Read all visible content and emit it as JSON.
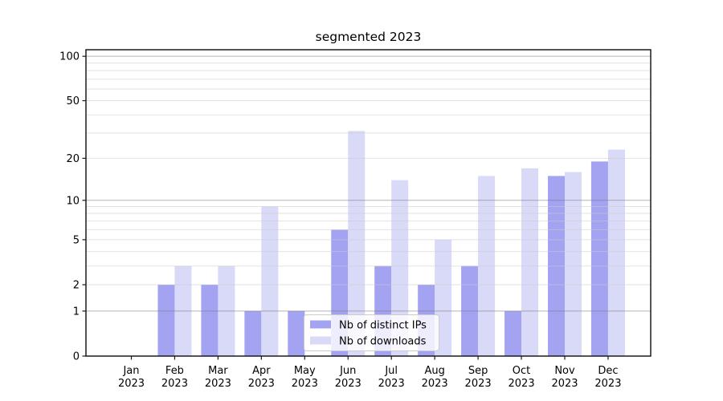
{
  "title": "segmented 2023",
  "chart_data": {
    "type": "bar",
    "title": "segmented 2023",
    "categories": [
      "Jan",
      "Feb",
      "Mar",
      "Apr",
      "May",
      "Jun",
      "Jul",
      "Aug",
      "Sep",
      "Oct",
      "Nov",
      "Dec"
    ],
    "year_label": "2023",
    "x_tick_labels": [
      "Jan 2023",
      "Feb 2023",
      "Mar 2023",
      "Apr 2023",
      "May 2023",
      "Jun 2023",
      "Jul 2023",
      "Aug 2023",
      "Sep 2023",
      "Oct 2023",
      "Nov 2023",
      "Dec 2023"
    ],
    "series": [
      {
        "name": "Nb of distinct IPs",
        "color": "#a3a3f2",
        "values": [
          0,
          2,
          2,
          1,
          1,
          6,
          3,
          2,
          3,
          1,
          15,
          19
        ]
      },
      {
        "name": "Nb of downloads",
        "color": "#d9d9f8",
        "values": [
          0,
          3,
          3,
          9,
          0,
          31,
          14,
          5,
          15,
          17,
          16,
          23
        ]
      }
    ],
    "xlabel": "",
    "ylabel": "",
    "yscale": "symlog-like (pixel position proportional to ln(1+value))",
    "yticks": [
      0,
      1,
      2,
      5,
      10,
      20,
      50,
      100
    ],
    "major_gridlines": [
      1,
      10,
      100
    ],
    "minor_gridlines": [
      2,
      3,
      4,
      5,
      6,
      7,
      8,
      9,
      20,
      30,
      40,
      50,
      60,
      70,
      80,
      90
    ],
    "ylim": [
      0,
      111
    ],
    "grid": true,
    "legend": {
      "position": "lower center (overlapping bars)",
      "items": [
        "Nb of distinct IPs",
        "Nb of downloads"
      ]
    }
  },
  "colors": {
    "series_ips": "#a3a3f2",
    "series_downloads": "#d9d9f8",
    "grid_major": "#777777",
    "grid_minor": "#cccccc",
    "spine": "#1a1a1a",
    "legend_border": "#cccccc",
    "background": "#ffffff"
  }
}
